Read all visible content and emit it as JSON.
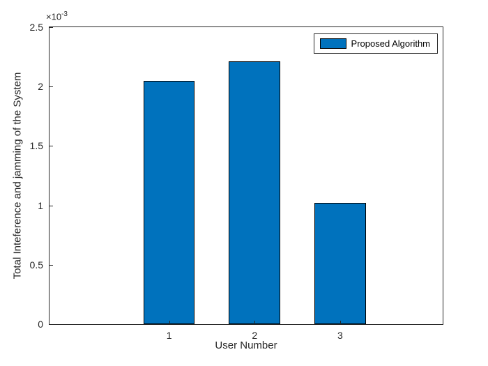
{
  "chart_data": {
    "type": "bar",
    "title": "",
    "xlabel": "User Number",
    "ylabel": "Total Inteference and jamming of the System",
    "categories": [
      "1",
      "2",
      "3"
    ],
    "x_positions": [
      1,
      2,
      3
    ],
    "values": [
      0.00205,
      0.00221,
      0.00102
    ],
    "bar_width": 0.6,
    "xlim": [
      -0.4,
      4.2
    ],
    "ylim": [
      0,
      0.0025
    ],
    "yticks": [
      {
        "value": 0,
        "label": "0"
      },
      {
        "value": 0.0005,
        "label": "0.5"
      },
      {
        "value": 0.001,
        "label": "1"
      },
      {
        "value": 0.0015,
        "label": "1.5"
      },
      {
        "value": 0.002,
        "label": "2"
      },
      {
        "value": 0.0025,
        "label": "2.5"
      }
    ],
    "y_exponent_base": "×10",
    "y_exponent_power": "-3",
    "grid": false,
    "legend": {
      "position": "top-right",
      "entries": [
        {
          "label": "Proposed Algorithm",
          "swatch_color": "#0072BD"
        }
      ]
    },
    "bar_color": "#0072BD",
    "bar_edge_color": "#000000",
    "axis_color": "#262626",
    "background_color": "#ffffff"
  }
}
